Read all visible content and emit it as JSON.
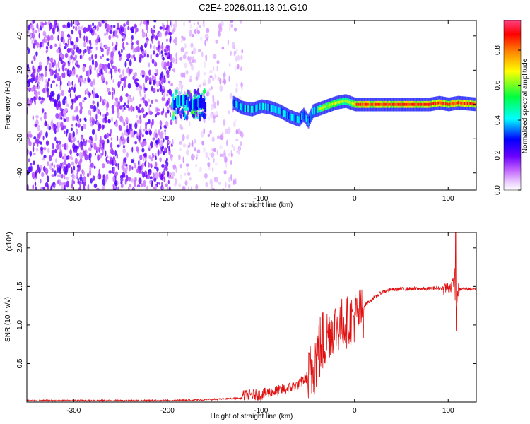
{
  "title": "C2E4.2026.011.13.01.G10",
  "chart_data": [
    {
      "type": "heatmap",
      "title": "C2E4.2026.011.13.01.G10",
      "xlabel": "Height of straight line (km)",
      "ylabel": "Frequency (Hz)",
      "xlim": [
        -350,
        130
      ],
      "ylim": [
        -50,
        49
      ],
      "xticks": [
        -300,
        -200,
        -100,
        0,
        100
      ],
      "yticks": [
        -40,
        -20,
        0,
        20,
        40
      ],
      "colorbar": {
        "label": "Normalized spectral amplitude",
        "range": [
          0.0,
          0.97
        ],
        "ticks": [
          0.0,
          0.2,
          0.4,
          0.6,
          0.8
        ],
        "tick_labels": [
          "0.0",
          "0.2",
          "0.4",
          "0.6",
          "0.8"
        ],
        "colors": [
          "#ffffff",
          "#c060ff",
          "#6a00ff",
          "#0000ff",
          "#00ffff",
          "#00ff40",
          "#ffff00",
          "#ff8000",
          "#ff0000",
          "#ff4080"
        ]
      },
      "regions": [
        {
          "name": "broadband-noise",
          "x_range": [
            -350,
            -195
          ],
          "mean_amplitude": 0.15
        },
        {
          "name": "sparse-noise",
          "x_range": [
            -195,
            -120
          ],
          "mean_amplitude": 0.06
        },
        {
          "name": "signal-onset",
          "x_range": [
            -195,
            -160
          ],
          "mean_amplitude": 0.4
        },
        {
          "name": "tone-track",
          "x_range": [
            -130,
            130
          ],
          "mean_amplitude": 0.9
        }
      ],
      "tone_track": {
        "x": [
          -195,
          -185,
          -175,
          -165,
          -160,
          -130,
          -120,
          -110,
          -100,
          -90,
          -80,
          -70,
          -60,
          -55,
          -50,
          -45,
          -40,
          -30,
          -20,
          -10,
          0,
          20,
          40,
          60,
          80,
          90,
          100,
          110,
          130
        ],
        "y": [
          0,
          2,
          -1,
          1,
          -3,
          1,
          -2,
          -3,
          -1,
          -2,
          -4,
          -7,
          -9,
          -6,
          -10,
          -4,
          -3,
          -1,
          1,
          2,
          0,
          0,
          0,
          0,
          0,
          1,
          0,
          1,
          0
        ]
      }
    },
    {
      "type": "line",
      "xlabel": "Height of straight line (km)",
      "ylabel": "SNR (10 * v/v)",
      "y_multiplier": "(x10⁴)",
      "xlim": [
        -350,
        130
      ],
      "ylim": [
        0,
        2.2
      ],
      "xticks": [
        -300,
        -200,
        -100,
        0,
        100
      ],
      "yticks": [
        0.5,
        1.0,
        1.5,
        2.0
      ],
      "ytick_labels": [
        "0.5",
        "1.0",
        "1.5",
        "2.0"
      ],
      "color": "#e01010",
      "series": [
        {
          "name": "SNR",
          "x": [
            -350,
            -300,
            -250,
            -200,
            -160,
            -140,
            -120,
            -100,
            -80,
            -70,
            -60,
            -50,
            -45,
            -40,
            -35,
            -30,
            -25,
            -20,
            -15,
            -10,
            -5,
            0,
            5,
            10,
            20,
            30,
            40,
            60,
            80,
            95,
            100,
            105,
            107,
            108,
            110,
            115,
            130
          ],
          "y": [
            0.02,
            0.02,
            0.02,
            0.02,
            0.03,
            0.04,
            0.05,
            0.07,
            0.12,
            0.15,
            0.2,
            0.3,
            0.55,
            0.7,
            0.85,
            0.95,
            1.0,
            1.05,
            1.08,
            1.1,
            1.12,
            1.18,
            1.2,
            1.25,
            1.35,
            1.43,
            1.46,
            1.47,
            1.47,
            1.48,
            1.48,
            1.52,
            1.7,
            0.85,
            1.45,
            1.47,
            1.47
          ]
        }
      ]
    }
  ]
}
